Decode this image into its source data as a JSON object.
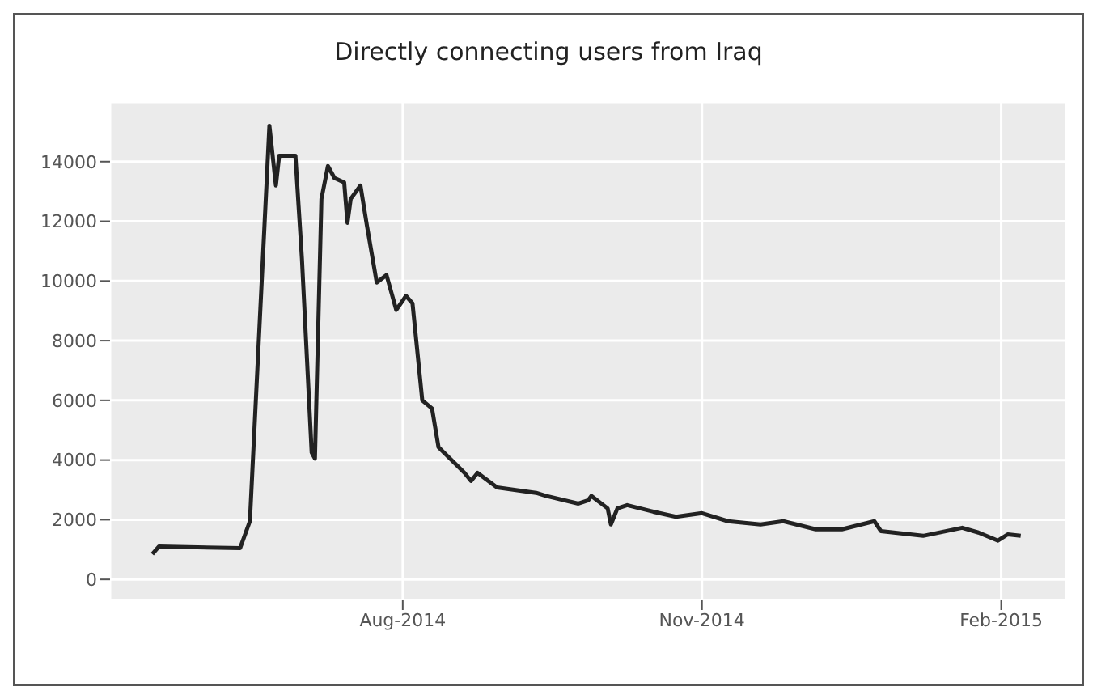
{
  "chart_data": {
    "type": "line",
    "title": "Directly connecting users from Iraq",
    "x": [
      "2014-05-16",
      "2014-05-18",
      "2014-06-12",
      "2014-06-15",
      "2014-06-21",
      "2014-06-23",
      "2014-06-24",
      "2014-06-29",
      "2014-07-01",
      "2014-07-04",
      "2014-07-05",
      "2014-07-07",
      "2014-07-09",
      "2014-07-11",
      "2014-07-14",
      "2014-07-15",
      "2014-07-16",
      "2014-07-19",
      "2014-07-21",
      "2014-07-24",
      "2014-07-27",
      "2014-07-30",
      "2014-08-02",
      "2014-08-04",
      "2014-08-07",
      "2014-08-10",
      "2014-08-12",
      "2014-08-20",
      "2014-08-22",
      "2014-08-24",
      "2014-08-30",
      "2014-09-11",
      "2014-09-14",
      "2014-09-24",
      "2014-09-27",
      "2014-09-28",
      "2014-10-03",
      "2014-10-04",
      "2014-10-06",
      "2014-10-09",
      "2014-10-17",
      "2014-10-24",
      "2014-11-01",
      "2014-11-09",
      "2014-11-19",
      "2014-11-26",
      "2014-12-06",
      "2014-12-14",
      "2014-12-24",
      "2014-12-26",
      "2015-01-08",
      "2015-01-20",
      "2015-01-25",
      "2015-01-31",
      "2015-02-03",
      "2015-02-07"
    ],
    "series": [
      {
        "color": "#222222",
        "values": [
          850,
          1100,
          1050,
          1950,
          15200,
          13200,
          14200,
          14200,
          10750,
          4250,
          4050,
          12750,
          13850,
          13450,
          13300,
          11950,
          12750,
          13200,
          11850,
          9950,
          10200,
          9030,
          9500,
          9250,
          6000,
          5730,
          4430,
          3570,
          3300,
          3570,
          3080,
          2900,
          2800,
          2540,
          2650,
          2800,
          2380,
          1840,
          2380,
          2490,
          2270,
          2100,
          2220,
          1950,
          1840,
          1950,
          1680,
          1680,
          1950,
          1620,
          1460,
          1730,
          1570,
          1300,
          1510,
          1460
        ]
      }
    ],
    "xlim": [
      "2014-05-03",
      "2015-02-21"
    ],
    "xticks": [
      {
        "value": "2014-08-01",
        "label": "Aug-2014"
      },
      {
        "value": "2014-11-01",
        "label": "Nov-2014"
      },
      {
        "value": "2015-02-01",
        "label": "Feb-2015"
      }
    ],
    "ylim": [
      -700,
      16000
    ],
    "yticks": [
      0,
      2000,
      4000,
      6000,
      8000,
      10000,
      12000,
      14000
    ],
    "grid": true
  }
}
